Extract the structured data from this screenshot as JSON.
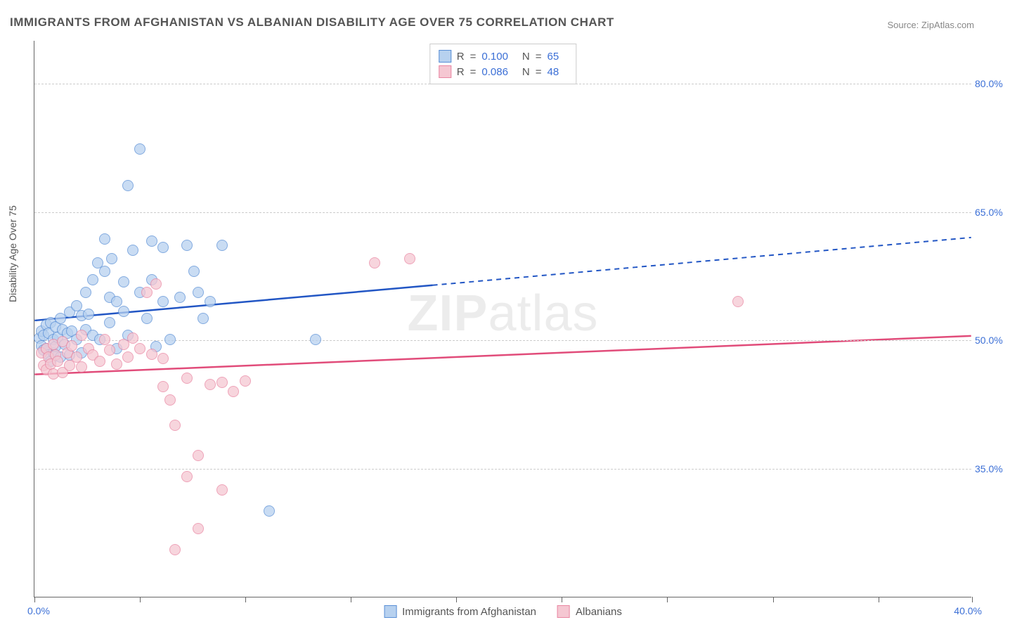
{
  "title": "IMMIGRANTS FROM AFGHANISTAN VS ALBANIAN DISABILITY AGE OVER 75 CORRELATION CHART",
  "source": "Source: ZipAtlas.com",
  "ylabel": "Disability Age Over 75",
  "watermark_bold": "ZIP",
  "watermark_rest": "atlas",
  "chart": {
    "type": "scatter",
    "xlim": [
      0,
      40
    ],
    "ylim": [
      20,
      85
    ],
    "x_tick_positions": [
      0,
      4.5,
      9,
      13.5,
      18,
      22.5,
      27,
      31.5,
      36,
      40
    ],
    "x_tick_label_first": "0.0%",
    "x_tick_label_last": "40.0%",
    "y_gridlines": [
      35,
      50,
      65,
      80
    ],
    "y_gridline_labels": [
      "35.0%",
      "50.0%",
      "65.0%",
      "80.0%"
    ],
    "grid_color": "#cccccc",
    "axis_color": "#666666",
    "background_color": "#ffffff",
    "point_radius": 8,
    "series": [
      {
        "name": "Immigrants from Afghanistan",
        "fill": "#b7d1ef",
        "stroke": "#5a8fd6",
        "line_color": "#2256c4",
        "R_label": "R",
        "R_value": "0.100",
        "N_label": "N",
        "N_value": "65",
        "regression": {
          "x1": 0,
          "y1": 52.3,
          "x2": 40,
          "y2": 62.0,
          "solid_until_x": 17
        },
        "points": [
          [
            0.2,
            50.2
          ],
          [
            0.3,
            49.3
          ],
          [
            0.3,
            51.0
          ],
          [
            0.4,
            48.8
          ],
          [
            0.4,
            50.5
          ],
          [
            0.5,
            49.0
          ],
          [
            0.5,
            51.8
          ],
          [
            0.6,
            48.2
          ],
          [
            0.6,
            50.8
          ],
          [
            0.7,
            47.5
          ],
          [
            0.7,
            52.0
          ],
          [
            0.8,
            50.0
          ],
          [
            0.8,
            48.5
          ],
          [
            0.9,
            51.5
          ],
          [
            0.9,
            49.2
          ],
          [
            1.0,
            50.3
          ],
          [
            1.1,
            48.0
          ],
          [
            1.1,
            52.5
          ],
          [
            1.2,
            51.2
          ],
          [
            1.3,
            49.5
          ],
          [
            1.4,
            50.8
          ],
          [
            1.5,
            53.2
          ],
          [
            1.5,
            48.2
          ],
          [
            1.6,
            51.0
          ],
          [
            1.8,
            54.0
          ],
          [
            1.8,
            50.0
          ],
          [
            2.0,
            52.8
          ],
          [
            2.0,
            48.5
          ],
          [
            2.2,
            55.5
          ],
          [
            2.2,
            51.2
          ],
          [
            2.3,
            53.0
          ],
          [
            2.5,
            57.0
          ],
          [
            2.5,
            50.5
          ],
          [
            2.7,
            59.0
          ],
          [
            2.8,
            50.0
          ],
          [
            3.0,
            61.8
          ],
          [
            3.0,
            58.0
          ],
          [
            3.2,
            55.0
          ],
          [
            3.2,
            52.0
          ],
          [
            3.3,
            59.5
          ],
          [
            3.5,
            49.0
          ],
          [
            3.5,
            54.5
          ],
          [
            3.8,
            53.3
          ],
          [
            3.8,
            56.8
          ],
          [
            4.0,
            68.0
          ],
          [
            4.0,
            50.5
          ],
          [
            4.2,
            60.5
          ],
          [
            4.5,
            55.5
          ],
          [
            4.5,
            72.3
          ],
          [
            4.8,
            52.5
          ],
          [
            5.0,
            61.5
          ],
          [
            5.0,
            57.0
          ],
          [
            5.2,
            49.2
          ],
          [
            5.5,
            54.5
          ],
          [
            5.5,
            60.8
          ],
          [
            5.8,
            50.0
          ],
          [
            6.2,
            55.0
          ],
          [
            6.5,
            61.0
          ],
          [
            6.8,
            58.0
          ],
          [
            7.0,
            55.5
          ],
          [
            7.2,
            52.5
          ],
          [
            7.5,
            54.5
          ],
          [
            8.0,
            61.0
          ],
          [
            10.0,
            30.0
          ],
          [
            12.0,
            50.0
          ]
        ]
      },
      {
        "name": "Albanians",
        "fill": "#f5c7d2",
        "stroke": "#e986a2",
        "line_color": "#e14c7a",
        "R_label": "R",
        "R_value": "0.086",
        "N_label": "N",
        "N_value": "48",
        "regression": {
          "x1": 0,
          "y1": 46.0,
          "x2": 40,
          "y2": 50.5,
          "solid_until_x": 40
        },
        "points": [
          [
            0.3,
            48.5
          ],
          [
            0.4,
            47.0
          ],
          [
            0.5,
            49.0
          ],
          [
            0.5,
            46.5
          ],
          [
            0.6,
            48.0
          ],
          [
            0.7,
            47.2
          ],
          [
            0.8,
            49.5
          ],
          [
            0.8,
            46.0
          ],
          [
            0.9,
            48.2
          ],
          [
            1.0,
            47.5
          ],
          [
            1.2,
            49.8
          ],
          [
            1.2,
            46.2
          ],
          [
            1.4,
            48.5
          ],
          [
            1.5,
            47.0
          ],
          [
            1.6,
            49.3
          ],
          [
            1.8,
            48.0
          ],
          [
            2.0,
            50.5
          ],
          [
            2.0,
            46.8
          ],
          [
            2.3,
            49.0
          ],
          [
            2.5,
            48.2
          ],
          [
            2.8,
            47.5
          ],
          [
            3.0,
            50.0
          ],
          [
            3.2,
            48.8
          ],
          [
            3.5,
            47.2
          ],
          [
            3.8,
            49.5
          ],
          [
            4.0,
            48.0
          ],
          [
            4.2,
            50.2
          ],
          [
            4.5,
            49.0
          ],
          [
            4.8,
            55.5
          ],
          [
            5.0,
            48.3
          ],
          [
            5.2,
            56.5
          ],
          [
            5.5,
            47.8
          ],
          [
            5.5,
            44.5
          ],
          [
            5.8,
            43.0
          ],
          [
            6.0,
            25.5
          ],
          [
            6.0,
            40.0
          ],
          [
            6.5,
            34.0
          ],
          [
            6.5,
            45.5
          ],
          [
            7.0,
            28.0
          ],
          [
            7.0,
            36.5
          ],
          [
            7.5,
            44.8
          ],
          [
            8.0,
            32.5
          ],
          [
            8.0,
            45.0
          ],
          [
            8.5,
            44.0
          ],
          [
            9.0,
            45.2
          ],
          [
            14.5,
            59.0
          ],
          [
            16.0,
            59.5
          ],
          [
            30.0,
            54.5
          ]
        ]
      }
    ]
  }
}
